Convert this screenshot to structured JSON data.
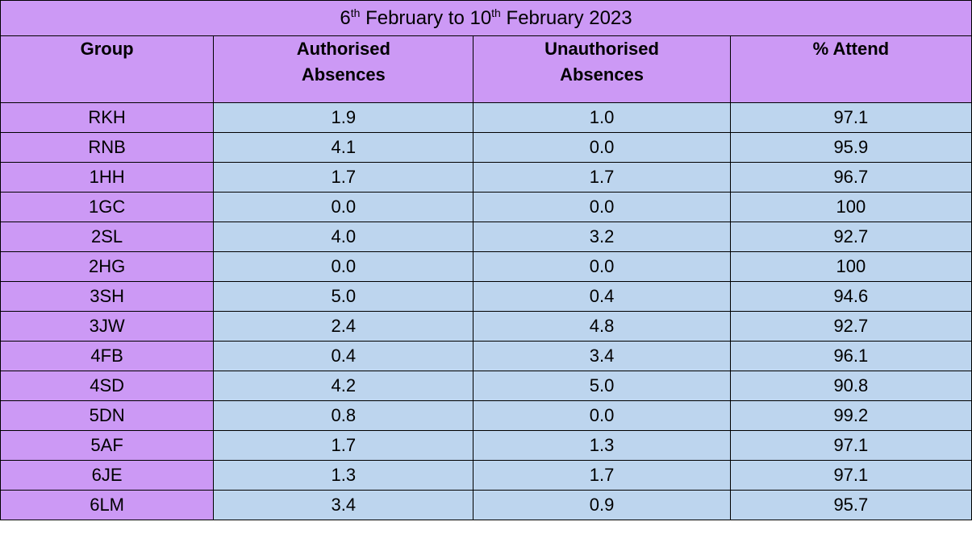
{
  "title": {
    "day1": "6",
    "suffix1": "th",
    "mid": " February to ",
    "day2": "10",
    "suffix2": "th",
    "end": " February 2023"
  },
  "headers": {
    "group": "Group",
    "authorised_line1": "Authorised",
    "authorised_line2": "Absences",
    "unauthorised_line1": "Unauthorised",
    "unauthorised_line2": "Absences",
    "attend": "% Attend"
  },
  "rows": [
    {
      "group": "RKH",
      "authorised": "1.9",
      "unauthorised": "1.0",
      "attend": "97.1"
    },
    {
      "group": "RNB",
      "authorised": "4.1",
      "unauthorised": "0.0",
      "attend": "95.9"
    },
    {
      "group": "1HH",
      "authorised": "1.7",
      "unauthorised": "1.7",
      "attend": "96.7"
    },
    {
      "group": "1GC",
      "authorised": "0.0",
      "unauthorised": "0.0",
      "attend": "100"
    },
    {
      "group": "2SL",
      "authorised": "4.0",
      "unauthorised": "3.2",
      "attend": "92.7"
    },
    {
      "group": "2HG",
      "authorised": "0.0",
      "unauthorised": "0.0",
      "attend": "100"
    },
    {
      "group": "3SH",
      "authorised": "5.0",
      "unauthorised": "0.4",
      "attend": "94.6"
    },
    {
      "group": "3JW",
      "authorised": "2.4",
      "unauthorised": "4.8",
      "attend": "92.7"
    },
    {
      "group": "4FB",
      "authorised": "0.4",
      "unauthorised": "3.4",
      "attend": "96.1"
    },
    {
      "group": "4SD",
      "authorised": "4.2",
      "unauthorised": "5.0",
      "attend": "90.8"
    },
    {
      "group": "5DN",
      "authorised": "0.8",
      "unauthorised": "0.0",
      "attend": "99.2"
    },
    {
      "group": "5AF",
      "authorised": "1.7",
      "unauthorised": "1.3",
      "attend": "97.1"
    },
    {
      "group": "6JE",
      "authorised": "1.3",
      "unauthorised": "1.7",
      "attend": "97.1"
    },
    {
      "group": "6LM",
      "authorised": "3.4",
      "unauthorised": "0.9",
      "attend": "95.7"
    }
  ],
  "colors": {
    "header_purple": "#cc99f5",
    "cell_blue": "#bdd5ee",
    "border": "#000000"
  }
}
